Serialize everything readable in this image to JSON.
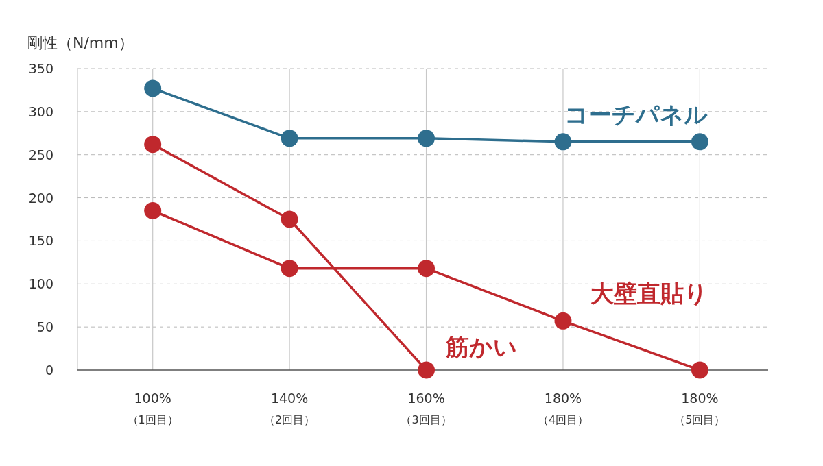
{
  "chart_data": {
    "type": "line",
    "ylabel": "剛性（N/mm）",
    "categories": [
      "100%\n（1回目）",
      "140%\n（2回目）",
      "160%\n（3回目）",
      "180%\n（4回目）",
      "180%\n（5回目）"
    ],
    "series": [
      {
        "name": "コーチパネル",
        "color": "#2e6e8e",
        "values": [
          327,
          269,
          269,
          265,
          265
        ]
      },
      {
        "name": "筋かい",
        "color": "#c0282d",
        "values": [
          262,
          175,
          0,
          null,
          null
        ]
      },
      {
        "name": "大壁直貼り",
        "color": "#c0282d",
        "values": [
          185,
          118,
          118,
          57,
          0
        ]
      }
    ],
    "ylim": [
      0,
      350
    ],
    "yticks": [
      0,
      50,
      100,
      150,
      200,
      250,
      300,
      350
    ],
    "grid": true,
    "marker": "circle",
    "line_style": "solid"
  }
}
